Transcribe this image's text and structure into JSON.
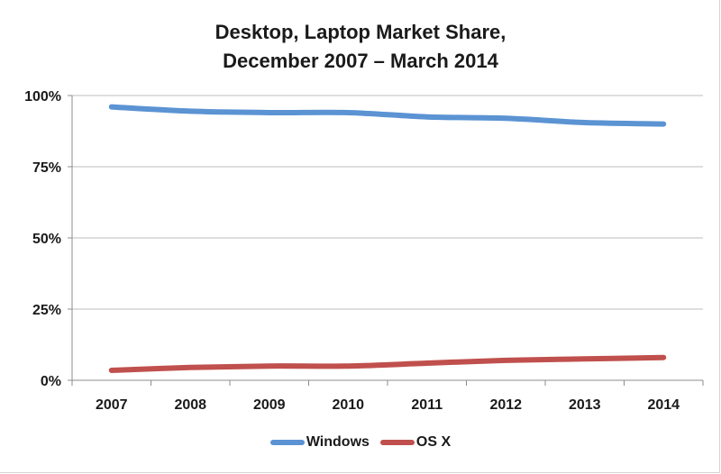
{
  "chart_data": {
    "type": "line",
    "title": "Desktop, Laptop Market Share,",
    "subtitle": "December 2007 – March 2014",
    "xlabel": "",
    "ylabel": "",
    "categories": [
      "2007",
      "2008",
      "2009",
      "2010",
      "2011",
      "2012",
      "2013",
      "2014"
    ],
    "y_ticks": [
      "100%",
      "75%",
      "50%",
      "25%",
      "0%"
    ],
    "ylim": [
      0,
      100
    ],
    "grid": true,
    "legend_position": "bottom",
    "series": [
      {
        "name": "Windows",
        "color": "#5b93d3",
        "values": [
          96,
          94.5,
          94,
          94,
          92.5,
          92,
          90.5,
          90
        ]
      },
      {
        "name": "OS X",
        "color": "#c0504d",
        "values": [
          3.5,
          4.5,
          5,
          5,
          6,
          7,
          7.5,
          8
        ]
      }
    ]
  }
}
